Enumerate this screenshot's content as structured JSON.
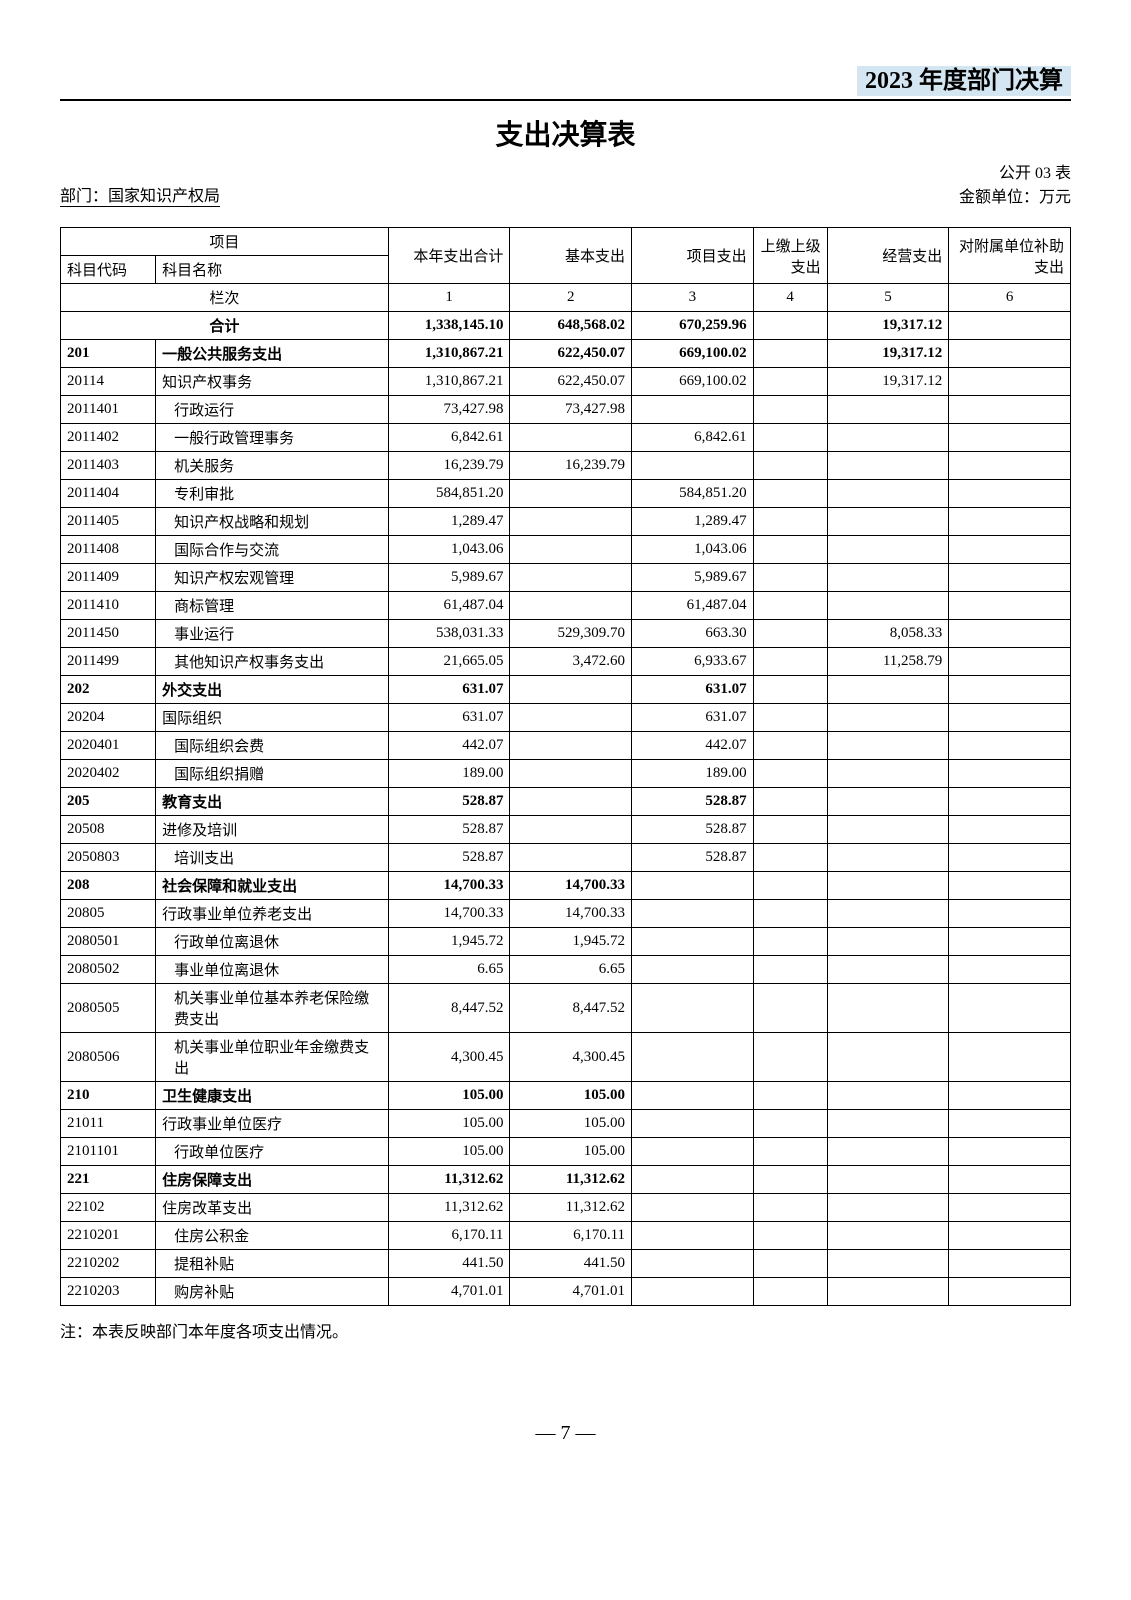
{
  "header": {
    "year_title": "2023 年度部门决算",
    "main_title": "支出决算表",
    "table_number": "公开 03 表",
    "department_label": "部门：",
    "department_name": "国家知识产权局",
    "unit_label": "金额单位：万元"
  },
  "table": {
    "header": {
      "project": "项目",
      "code": "科目代码",
      "name": "科目名称",
      "total": "本年支出合计",
      "basic": "基本支出",
      "project_exp": "项目支出",
      "upper": "上缴上级支出",
      "business": "经营支出",
      "subsidy": "对附属单位补助支出",
      "row_label": "栏次",
      "c1": "1",
      "c2": "2",
      "c3": "3",
      "c4": "4",
      "c5": "5",
      "c6": "6"
    },
    "total_row": {
      "name": "合计",
      "total": "1,338,145.10",
      "basic": "648,568.02",
      "project": "670,259.96",
      "upper": "",
      "business": "19,317.12",
      "subsidy": ""
    },
    "rows": [
      {
        "code": "201",
        "name": "一般公共服务支出",
        "total": "1,310,867.21",
        "basic": "622,450.07",
        "project": "669,100.02",
        "upper": "",
        "business": "19,317.12",
        "subsidy": "",
        "bold": true,
        "indent": 0
      },
      {
        "code": "20114",
        "name": "知识产权事务",
        "total": "1,310,867.21",
        "basic": "622,450.07",
        "project": "669,100.02",
        "upper": "",
        "business": "19,317.12",
        "subsidy": "",
        "bold": false,
        "indent": 0
      },
      {
        "code": "2011401",
        "name": "行政运行",
        "total": "73,427.98",
        "basic": "73,427.98",
        "project": "",
        "upper": "",
        "business": "",
        "subsidy": "",
        "bold": false,
        "indent": 1
      },
      {
        "code": "2011402",
        "name": "一般行政管理事务",
        "total": "6,842.61",
        "basic": "",
        "project": "6,842.61",
        "upper": "",
        "business": "",
        "subsidy": "",
        "bold": false,
        "indent": 1
      },
      {
        "code": "2011403",
        "name": "机关服务",
        "total": "16,239.79",
        "basic": "16,239.79",
        "project": "",
        "upper": "",
        "business": "",
        "subsidy": "",
        "bold": false,
        "indent": 1
      },
      {
        "code": "2011404",
        "name": "专利审批",
        "total": "584,851.20",
        "basic": "",
        "project": "584,851.20",
        "upper": "",
        "business": "",
        "subsidy": "",
        "bold": false,
        "indent": 1
      },
      {
        "code": "2011405",
        "name": "知识产权战略和规划",
        "total": "1,289.47",
        "basic": "",
        "project": "1,289.47",
        "upper": "",
        "business": "",
        "subsidy": "",
        "bold": false,
        "indent": 1
      },
      {
        "code": "2011408",
        "name": "国际合作与交流",
        "total": "1,043.06",
        "basic": "",
        "project": "1,043.06",
        "upper": "",
        "business": "",
        "subsidy": "",
        "bold": false,
        "indent": 1
      },
      {
        "code": "2011409",
        "name": "知识产权宏观管理",
        "total": "5,989.67",
        "basic": "",
        "project": "5,989.67",
        "upper": "",
        "business": "",
        "subsidy": "",
        "bold": false,
        "indent": 1
      },
      {
        "code": "2011410",
        "name": "商标管理",
        "total": "61,487.04",
        "basic": "",
        "project": "61,487.04",
        "upper": "",
        "business": "",
        "subsidy": "",
        "bold": false,
        "indent": 1
      },
      {
        "code": "2011450",
        "name": "事业运行",
        "total": "538,031.33",
        "basic": "529,309.70",
        "project": "663.30",
        "upper": "",
        "business": "8,058.33",
        "subsidy": "",
        "bold": false,
        "indent": 1
      },
      {
        "code": "2011499",
        "name": "其他知识产权事务支出",
        "total": "21,665.05",
        "basic": "3,472.60",
        "project": "6,933.67",
        "upper": "",
        "business": "11,258.79",
        "subsidy": "",
        "bold": false,
        "indent": 1
      },
      {
        "code": "202",
        "name": "外交支出",
        "total": "631.07",
        "basic": "",
        "project": "631.07",
        "upper": "",
        "business": "",
        "subsidy": "",
        "bold": true,
        "indent": 0
      },
      {
        "code": "20204",
        "name": "国际组织",
        "total": "631.07",
        "basic": "",
        "project": "631.07",
        "upper": "",
        "business": "",
        "subsidy": "",
        "bold": false,
        "indent": 0
      },
      {
        "code": "2020401",
        "name": "国际组织会费",
        "total": "442.07",
        "basic": "",
        "project": "442.07",
        "upper": "",
        "business": "",
        "subsidy": "",
        "bold": false,
        "indent": 1
      },
      {
        "code": "2020402",
        "name": "国际组织捐赠",
        "total": "189.00",
        "basic": "",
        "project": "189.00",
        "upper": "",
        "business": "",
        "subsidy": "",
        "bold": false,
        "indent": 1
      },
      {
        "code": "205",
        "name": "教育支出",
        "total": "528.87",
        "basic": "",
        "project": "528.87",
        "upper": "",
        "business": "",
        "subsidy": "",
        "bold": true,
        "indent": 0
      },
      {
        "code": "20508",
        "name": "进修及培训",
        "total": "528.87",
        "basic": "",
        "project": "528.87",
        "upper": "",
        "business": "",
        "subsidy": "",
        "bold": false,
        "indent": 0
      },
      {
        "code": "2050803",
        "name": "培训支出",
        "total": "528.87",
        "basic": "",
        "project": "528.87",
        "upper": "",
        "business": "",
        "subsidy": "",
        "bold": false,
        "indent": 1
      },
      {
        "code": "208",
        "name": "社会保障和就业支出",
        "total": "14,700.33",
        "basic": "14,700.33",
        "project": "",
        "upper": "",
        "business": "",
        "subsidy": "",
        "bold": true,
        "indent": 0
      },
      {
        "code": "20805",
        "name": "行政事业单位养老支出",
        "total": "14,700.33",
        "basic": "14,700.33",
        "project": "",
        "upper": "",
        "business": "",
        "subsidy": "",
        "bold": false,
        "indent": 0
      },
      {
        "code": "2080501",
        "name": "行政单位离退休",
        "total": "1,945.72",
        "basic": "1,945.72",
        "project": "",
        "upper": "",
        "business": "",
        "subsidy": "",
        "bold": false,
        "indent": 1
      },
      {
        "code": "2080502",
        "name": "事业单位离退休",
        "total": "6.65",
        "basic": "6.65",
        "project": "",
        "upper": "",
        "business": "",
        "subsidy": "",
        "bold": false,
        "indent": 1
      },
      {
        "code": "2080505",
        "name": "机关事业单位基本养老保险缴费支出",
        "total": "8,447.52",
        "basic": "8,447.52",
        "project": "",
        "upper": "",
        "business": "",
        "subsidy": "",
        "bold": false,
        "indent": 1
      },
      {
        "code": "2080506",
        "name": "机关事业单位职业年金缴费支出",
        "total": "4,300.45",
        "basic": "4,300.45",
        "project": "",
        "upper": "",
        "business": "",
        "subsidy": "",
        "bold": false,
        "indent": 1
      },
      {
        "code": "210",
        "name": "卫生健康支出",
        "total": "105.00",
        "basic": "105.00",
        "project": "",
        "upper": "",
        "business": "",
        "subsidy": "",
        "bold": true,
        "indent": 0
      },
      {
        "code": "21011",
        "name": "行政事业单位医疗",
        "total": "105.00",
        "basic": "105.00",
        "project": "",
        "upper": "",
        "business": "",
        "subsidy": "",
        "bold": false,
        "indent": 0
      },
      {
        "code": "2101101",
        "name": "行政单位医疗",
        "total": "105.00",
        "basic": "105.00",
        "project": "",
        "upper": "",
        "business": "",
        "subsidy": "",
        "bold": false,
        "indent": 1
      },
      {
        "code": "221",
        "name": "住房保障支出",
        "total": "11,312.62",
        "basic": "11,312.62",
        "project": "",
        "upper": "",
        "business": "",
        "subsidy": "",
        "bold": true,
        "indent": 0
      },
      {
        "code": "22102",
        "name": "住房改革支出",
        "total": "11,312.62",
        "basic": "11,312.62",
        "project": "",
        "upper": "",
        "business": "",
        "subsidy": "",
        "bold": false,
        "indent": 0
      },
      {
        "code": "2210201",
        "name": "住房公积金",
        "total": "6,170.11",
        "basic": "6,170.11",
        "project": "",
        "upper": "",
        "business": "",
        "subsidy": "",
        "bold": false,
        "indent": 1
      },
      {
        "code": "2210202",
        "name": "提租补贴",
        "total": "441.50",
        "basic": "441.50",
        "project": "",
        "upper": "",
        "business": "",
        "subsidy": "",
        "bold": false,
        "indent": 1
      },
      {
        "code": "2210203",
        "name": "购房补贴",
        "total": "4,701.01",
        "basic": "4,701.01",
        "project": "",
        "upper": "",
        "business": "",
        "subsidy": "",
        "bold": false,
        "indent": 1
      }
    ]
  },
  "note": "注：本表反映部门本年度各项支出情况。",
  "page_number": "— 7 —"
}
